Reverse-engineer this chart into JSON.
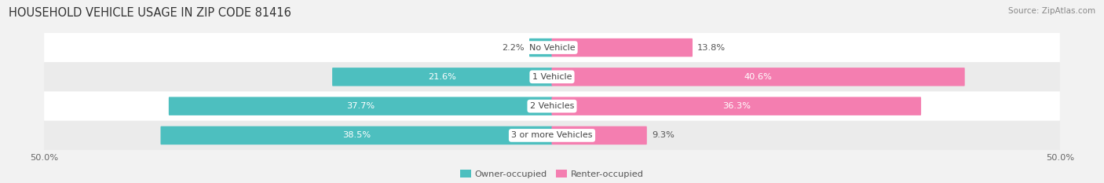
{
  "title": "HOUSEHOLD VEHICLE USAGE IN ZIP CODE 81416",
  "source": "Source: ZipAtlas.com",
  "categories": [
    "No Vehicle",
    "1 Vehicle",
    "2 Vehicles",
    "3 or more Vehicles"
  ],
  "owner_values": [
    2.2,
    21.6,
    37.7,
    38.5
  ],
  "renter_values": [
    13.8,
    40.6,
    36.3,
    9.3
  ],
  "owner_color": "#4DBFBF",
  "renter_color": "#F47EB0",
  "owner_label": "Owner-occupied",
  "renter_label": "Renter-occupied",
  "axis_limit": 50.0,
  "background_color": "#f2f2f2",
  "row_colors": [
    "#ffffff",
    "#ebebeb"
  ],
  "bar_height": 0.55,
  "title_fontsize": 10.5,
  "source_fontsize": 7.5,
  "label_fontsize": 8.2,
  "tick_fontsize": 8.2,
  "category_fontsize": 8.0
}
